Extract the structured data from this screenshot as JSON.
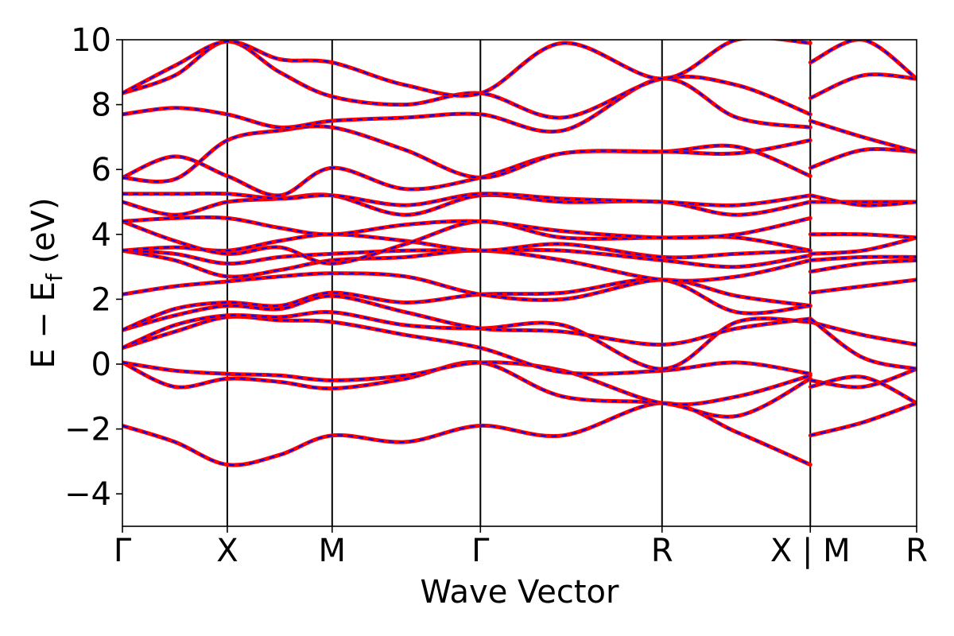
{
  "chart_data": {
    "type": "line",
    "title": "",
    "xlabel": "Wave Vector",
    "ylabel": "E − E",
    "ylabel_subscript": "f",
    "ylabel_unit": " (eV)",
    "ylim": [
      -5,
      10
    ],
    "y_ticks": [
      -4,
      -2,
      0,
      2,
      4,
      6,
      8,
      10
    ],
    "y_tick_labels": [
      "−4",
      "−2",
      "0",
      "2",
      "4",
      "6",
      "8",
      "10"
    ],
    "kpath": [
      {
        "label": "Γ",
        "x": 0.0
      },
      {
        "label": "X",
        "x": 0.5
      },
      {
        "label": "M",
        "x": 1.0
      },
      {
        "label": "Γ",
        "x": 1.707
      },
      {
        "label": "R",
        "x": 2.573
      },
      {
        "label": "X | M",
        "x": 3.28
      },
      {
        "label": "R",
        "x": 3.787
      }
    ],
    "xlim": [
      0,
      3.787
    ],
    "series_style": {
      "solid_color": "#ff0000",
      "dashed_color": "#0000ff"
    },
    "bands": [
      {
        "x": [
          0,
          0.25,
          0.5,
          0.75,
          1.0,
          1.35,
          1.707,
          2.1,
          2.573,
          2.93,
          3.28
        ],
        "values": [
          -1.9,
          -2.4,
          -3.1,
          -2.8,
          -2.2,
          -2.4,
          -1.9,
          -2.2,
          -1.2,
          -2.1,
          -3.1
        ]
      },
      {
        "x": [
          0,
          0.25,
          0.5,
          0.75,
          1.0,
          1.35,
          1.707,
          2.1,
          2.573,
          2.93,
          3.28
        ],
        "values": [
          0.05,
          -0.7,
          -0.45,
          -0.55,
          -0.75,
          -0.45,
          0.05,
          -1.0,
          -1.2,
          -1.6,
          -0.45
        ]
      },
      {
        "x": [
          0,
          0.25,
          0.5,
          0.75,
          1.0,
          1.35,
          1.707,
          2.1,
          2.573,
          2.93,
          3.28
        ],
        "values": [
          0.05,
          -0.2,
          -0.3,
          -0.35,
          -0.5,
          -0.35,
          0.05,
          -0.2,
          -1.2,
          -1.0,
          -0.35
        ]
      },
      {
        "x": [
          0,
          0.25,
          0.5,
          0.75,
          1.0,
          1.35,
          1.707,
          2.1,
          2.573,
          2.93,
          3.28
        ],
        "values": [
          0.5,
          1.0,
          1.45,
          1.35,
          1.3,
          0.9,
          0.5,
          -0.25,
          -0.2,
          0.05,
          -0.3
        ]
      },
      {
        "x": [
          0,
          0.25,
          0.5,
          0.75,
          1.0,
          1.35,
          1.707,
          2.1,
          2.573,
          2.93,
          3.28
        ],
        "values": [
          0.5,
          1.2,
          1.5,
          1.45,
          1.6,
          1.2,
          1.1,
          1.2,
          -0.15,
          1.3,
          1.3
        ]
      },
      {
        "x": [
          0,
          0.25,
          0.5,
          0.75,
          1.0,
          1.35,
          1.707,
          2.1,
          2.573,
          2.93,
          3.28
        ],
        "values": [
          1.05,
          1.5,
          1.8,
          1.7,
          2.1,
          1.6,
          1.1,
          1.0,
          0.6,
          1.1,
          1.4
        ]
      },
      {
        "x": [
          0,
          0.25,
          0.5,
          0.75,
          1.0,
          1.35,
          1.707,
          2.1,
          2.573,
          2.93,
          3.28
        ],
        "values": [
          1.05,
          1.7,
          1.9,
          1.8,
          2.2,
          1.9,
          2.15,
          2.2,
          2.6,
          1.6,
          1.8
        ]
      },
      {
        "x": [
          0,
          0.25,
          0.5,
          0.75,
          1.0,
          1.35,
          1.707,
          2.1,
          2.573,
          2.93,
          3.28
        ],
        "values": [
          2.15,
          2.4,
          2.55,
          2.7,
          2.8,
          2.7,
          2.15,
          2.0,
          2.6,
          2.1,
          1.8
        ]
      },
      {
        "x": [
          0,
          0.25,
          0.5,
          0.75,
          1.0,
          1.35,
          1.707,
          2.1,
          2.573,
          2.93,
          3.28
        ],
        "values": [
          3.5,
          3.2,
          2.7,
          2.9,
          3.2,
          3.3,
          3.5,
          3.2,
          2.6,
          2.7,
          3.2
        ]
      },
      {
        "x": [
          0,
          0.25,
          0.5,
          0.75,
          1.0,
          1.35,
          1.707,
          2.1,
          2.573,
          2.93,
          3.28
        ],
        "values": [
          3.5,
          3.4,
          3.1,
          3.3,
          3.4,
          3.5,
          3.5,
          3.5,
          3.2,
          3.0,
          3.35
        ]
      },
      {
        "x": [
          0,
          0.25,
          0.5,
          0.75,
          1.0,
          1.35,
          1.707,
          2.1,
          2.573,
          2.93,
          3.28
        ],
        "values": [
          3.5,
          3.6,
          3.5,
          3.8,
          4.0,
          3.8,
          3.5,
          3.7,
          3.3,
          3.4,
          3.5
        ]
      },
      {
        "x": [
          0,
          0.25,
          0.5,
          0.75,
          1.0,
          1.35,
          1.707,
          2.1,
          2.573,
          2.93,
          3.28
        ],
        "values": [
          4.4,
          3.8,
          3.4,
          3.6,
          3.1,
          3.7,
          4.4,
          3.9,
          3.9,
          3.9,
          3.5
        ]
      },
      {
        "x": [
          0,
          0.25,
          0.5,
          0.75,
          1.0,
          1.35,
          1.707,
          2.1,
          2.573,
          2.93,
          3.28
        ],
        "values": [
          4.4,
          4.5,
          4.5,
          4.2,
          4.0,
          4.3,
          4.4,
          4.1,
          3.9,
          4.0,
          4.5
        ]
      },
      {
        "x": [
          0,
          0.25,
          0.5,
          0.75,
          1.0,
          1.35,
          1.707,
          2.1,
          2.573,
          2.93,
          3.28
        ],
        "values": [
          5.0,
          4.6,
          5.0,
          5.1,
          5.2,
          4.6,
          5.2,
          5.0,
          5.0,
          4.6,
          5.0
        ]
      },
      {
        "x": [
          0,
          0.25,
          0.5,
          0.75,
          1.0,
          1.35,
          1.707,
          2.1,
          2.573,
          2.93,
          3.28
        ],
        "values": [
          5.25,
          5.25,
          5.25,
          5.1,
          5.2,
          4.9,
          5.25,
          5.1,
          5.0,
          4.9,
          5.2
        ]
      },
      {
        "x": [
          0,
          0.25,
          0.5,
          0.75,
          1.0,
          1.35,
          1.707,
          2.1,
          2.573,
          2.93,
          3.28
        ],
        "values": [
          5.75,
          6.4,
          5.8,
          5.2,
          6.05,
          5.4,
          5.75,
          6.5,
          6.55,
          6.7,
          5.8
        ]
      },
      {
        "x": [
          0,
          0.25,
          0.5,
          0.75,
          1.0,
          1.35,
          1.707,
          2.1,
          2.573,
          2.93,
          3.28
        ],
        "values": [
          5.75,
          5.7,
          6.9,
          7.2,
          7.3,
          6.6,
          5.75,
          6.5,
          6.55,
          6.5,
          6.9
        ]
      },
      {
        "x": [
          0,
          0.25,
          0.5,
          0.75,
          1.0,
          1.35,
          1.707,
          2.1,
          2.573,
          2.93,
          3.28
        ],
        "values": [
          7.7,
          7.9,
          7.7,
          7.3,
          7.5,
          7.6,
          7.7,
          7.2,
          8.8,
          7.6,
          7.3
        ]
      },
      {
        "x": [
          0,
          0.25,
          0.5,
          0.75,
          1.0,
          1.35,
          1.707,
          2.1,
          2.573,
          2.93,
          3.28
        ],
        "values": [
          8.35,
          8.9,
          9.95,
          9.0,
          8.25,
          8.0,
          8.35,
          7.6,
          8.8,
          8.6,
          7.7
        ]
      },
      {
        "x": [
          0,
          0.25,
          0.5,
          0.75,
          1.0,
          1.35,
          1.707,
          2.1,
          2.573,
          2.93,
          3.28
        ],
        "values": [
          8.35,
          9.2,
          9.95,
          9.4,
          9.3,
          8.6,
          8.35,
          9.9,
          8.8,
          10.0,
          9.9
        ]
      },
      {
        "x": [
          3.28,
          3.53,
          3.787
        ],
        "values": [
          -2.2,
          -1.8,
          -1.2
        ]
      },
      {
        "x": [
          3.28,
          3.53,
          3.787
        ],
        "values": [
          -0.5,
          -0.7,
          -0.15
        ]
      },
      {
        "x": [
          3.28,
          3.53,
          3.787
        ],
        "values": [
          -0.7,
          -0.4,
          -1.2
        ]
      },
      {
        "x": [
          3.28,
          3.53,
          3.787
        ],
        "values": [
          1.3,
          0.9,
          0.6
        ]
      },
      {
        "x": [
          3.28,
          3.53,
          3.787
        ],
        "values": [
          1.4,
          0.2,
          -0.15
        ]
      },
      {
        "x": [
          3.28,
          3.53,
          3.787
        ],
        "values": [
          2.2,
          2.4,
          2.6
        ]
      },
      {
        "x": [
          3.28,
          3.53,
          3.787
        ],
        "values": [
          2.85,
          3.1,
          3.2
        ]
      },
      {
        "x": [
          3.28,
          3.53,
          3.787
        ],
        "values": [
          3.2,
          3.3,
          3.3
        ]
      },
      {
        "x": [
          3.28,
          3.53,
          3.787
        ],
        "values": [
          3.4,
          3.5,
          3.9
        ]
      },
      {
        "x": [
          3.28,
          3.53,
          3.787
        ],
        "values": [
          4.0,
          4.0,
          3.9
        ]
      },
      {
        "x": [
          3.28,
          3.53,
          3.787
        ],
        "values": [
          5.0,
          5.0,
          5.0
        ]
      },
      {
        "x": [
          3.28,
          3.53,
          3.787
        ],
        "values": [
          5.2,
          4.9,
          5.0
        ]
      },
      {
        "x": [
          3.28,
          3.53,
          3.787
        ],
        "values": [
          6.05,
          6.6,
          6.55
        ]
      },
      {
        "x": [
          3.28,
          3.53,
          3.787
        ],
        "values": [
          7.5,
          7.0,
          6.55
        ]
      },
      {
        "x": [
          3.28,
          3.53,
          3.787
        ],
        "values": [
          8.2,
          8.9,
          8.8
        ]
      },
      {
        "x": [
          3.28,
          3.53,
          3.787
        ],
        "values": [
          9.3,
          10.0,
          8.8
        ]
      }
    ]
  }
}
